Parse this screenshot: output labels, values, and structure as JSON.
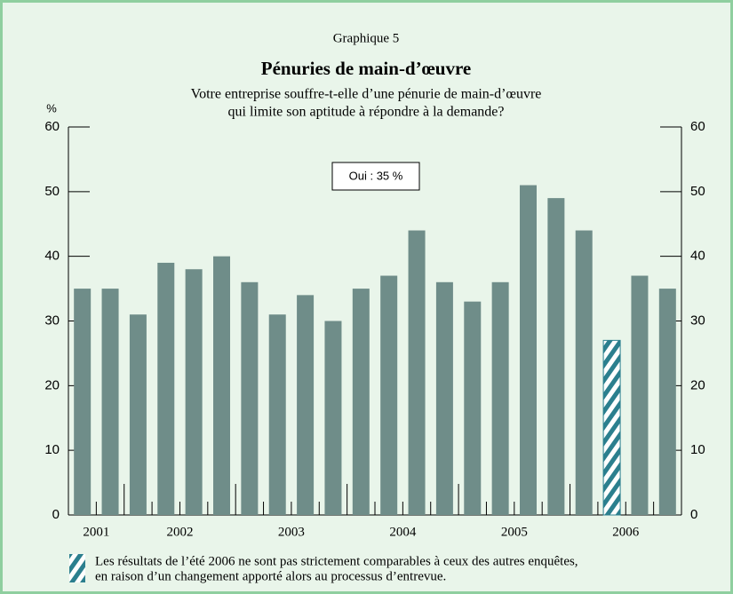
{
  "chart_data": {
    "type": "bar",
    "kicker": "Graphique 5",
    "title": "Pénuries de main-d’œuvre",
    "subtitle": [
      "Votre entreprise souffre-t-elle d’une pénurie de main-d’œuvre",
      "qui limite son aptitude à répondre à la demande?"
    ],
    "y_unit": "%",
    "annotation": "Oui : 35 %",
    "categories": [
      "2001",
      null,
      "2002",
      null,
      null,
      null,
      "2003",
      null,
      null,
      null,
      "2004",
      null,
      null,
      null,
      "2005",
      null,
      null,
      null,
      "2006",
      null,
      null,
      null
    ],
    "values": [
      35,
      35,
      31,
      39,
      38,
      40,
      36,
      31,
      34,
      30,
      35,
      37,
      44,
      36,
      33,
      36,
      51,
      49,
      44,
      27,
      37,
      35
    ],
    "bar_styles": [
      "solid",
      "solid",
      "solid",
      "solid",
      "solid",
      "solid",
      "solid",
      "solid",
      "solid",
      "solid",
      "solid",
      "solid",
      "solid",
      "solid",
      "solid",
      "solid",
      "solid",
      "solid",
      "solid",
      "hatch",
      "solid",
      "solid"
    ],
    "color": "#6f8d89",
    "hatch_color": "#2b7f8e",
    "ylim": [
      0,
      60
    ],
    "yticks": [
      0,
      10,
      20,
      30,
      40,
      50,
      60
    ],
    "y2lim": [
      0,
      60
    ],
    "y2ticks": [
      0,
      10,
      20,
      30,
      40,
      50,
      60
    ],
    "footnote": [
      "Les résultats de l’été 2006 ne sont pas strictement comparables à ceux des autres enquêtes,",
      "en raison d’un changement apporté alors au processus d’entrevue."
    ]
  }
}
